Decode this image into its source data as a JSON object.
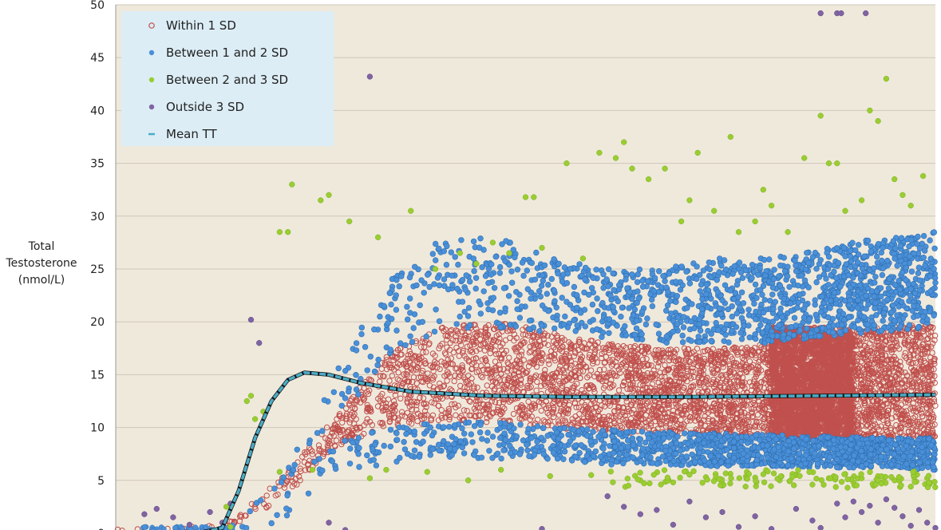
{
  "chart_data": {
    "type": "scatter",
    "title": "",
    "xlabel": "",
    "ylabel_lines": [
      "Total",
      "Testosterone",
      "(nmol/L)"
    ],
    "ylim": [
      0,
      50
    ],
    "yticks": [
      0,
      5,
      10,
      15,
      20,
      25,
      30,
      35,
      40,
      45,
      50
    ],
    "ytick_labels": [
      "0",
      "5",
      "10",
      "15",
      "20",
      "25",
      "30",
      "35",
      "40",
      "45",
      "50"
    ],
    "grid": true,
    "legend": {
      "placement": "top-left",
      "entries": [
        {
          "name": "Within 1 SD",
          "color": "#c0504d",
          "marker": "hollow-circle"
        },
        {
          "name": "Between 1 and 2 SD",
          "color": "#4a90d9",
          "marker": "filled-circle"
        },
        {
          "name": "Between 2 and 3 SD",
          "color": "#9acd32",
          "marker": "filled-circle"
        },
        {
          "name": "Outside 3 SD",
          "color": "#8064a2",
          "marker": "filled-circle"
        },
        {
          "name": "Mean TT",
          "color": "#4bacc6",
          "marker": "dash"
        }
      ]
    },
    "mean_curve_points": [
      [
        0.0,
        0.0
      ],
      [
        0.1,
        0.0
      ],
      [
        0.13,
        0.5
      ],
      [
        0.15,
        4.0
      ],
      [
        0.17,
        9.0
      ],
      [
        0.19,
        12.5
      ],
      [
        0.21,
        14.5
      ],
      [
        0.23,
        15.2
      ],
      [
        0.26,
        15.0
      ],
      [
        0.3,
        14.2
      ],
      [
        0.36,
        13.4
      ],
      [
        0.45,
        13.0
      ],
      [
        0.55,
        12.9
      ],
      [
        0.7,
        12.9
      ],
      [
        0.85,
        13.0
      ],
      [
        1.0,
        13.1
      ]
    ],
    "series": [
      {
        "name": "Within 1 SD",
        "color": "#c0504d",
        "band_min": [
          0,
          0,
          0.2,
          3,
          8,
          10,
          10.5,
          10.5,
          10,
          9.5,
          9.4,
          9.2,
          9.0,
          8.9,
          8.9,
          9.0
        ],
        "band_max": [
          0.5,
          0.5,
          0.8,
          5,
          11,
          17,
          19.5,
          20,
          19,
          18,
          17.5,
          17.5,
          18,
          18.5,
          19.5,
          19.8
        ],
        "density": [
          0,
          2,
          4,
          6,
          16,
          32,
          44,
          48,
          52,
          58,
          66,
          72,
          78,
          84,
          120,
          64
        ],
        "dense_block": {
          "x_from": 0.8,
          "x_to": 0.9,
          "y_from": 9.0,
          "y_to": 19.5
        }
      },
      {
        "name": "Between 1 and 2 SD",
        "color": "#4a90d9",
        "upper_min": [
          0,
          0,
          0,
          4,
          10,
          17,
          19,
          19.5,
          19,
          18.5,
          18,
          18,
          18,
          18.5,
          19,
          19.5
        ],
        "upper_max": [
          0,
          0,
          0,
          6,
          15,
          24,
          28,
          28,
          26,
          25,
          25,
          26,
          26,
          27,
          28,
          28.5
        ],
        "lower_min": [
          0,
          0,
          0,
          1,
          6,
          6.5,
          7,
          7,
          7,
          6.5,
          6.5,
          6.3,
          6.3,
          6.2,
          6.2,
          6.0
        ],
        "lower_max": [
          0,
          0,
          0,
          3,
          9,
          10,
          10.5,
          10.5,
          10,
          9.8,
          9.6,
          9.5,
          9.3,
          9.2,
          9.0,
          9.0
        ],
        "density_upper": [
          0,
          0,
          0,
          2,
          4,
          10,
          14,
          16,
          18,
          22,
          26,
          32,
          36,
          42,
          62,
          34
        ],
        "density_lower": [
          0,
          0,
          0,
          2,
          4,
          8,
          10,
          12,
          16,
          22,
          28,
          34,
          40,
          46,
          54,
          36
        ]
      },
      {
        "name": "Between 2 and 3 SD",
        "color": "#9acd32",
        "points": [
          [
            0.135,
            2.5
          ],
          [
            0.14,
            0.6
          ],
          [
            0.16,
            12.5
          ],
          [
            0.165,
            13.0
          ],
          [
            0.17,
            10.8
          ],
          [
            0.18,
            11.5
          ],
          [
            0.2,
            28.5
          ],
          [
            0.21,
            28.5
          ],
          [
            0.215,
            33.0
          ],
          [
            0.25,
            31.5
          ],
          [
            0.26,
            32.0
          ],
          [
            0.285,
            29.5
          ],
          [
            0.32,
            28.0
          ],
          [
            0.36,
            30.5
          ],
          [
            0.39,
            25.0
          ],
          [
            0.42,
            26.5
          ],
          [
            0.44,
            25.5
          ],
          [
            0.46,
            27.5
          ],
          [
            0.48,
            26.5
          ],
          [
            0.5,
            31.8
          ],
          [
            0.51,
            31.8
          ],
          [
            0.52,
            27.0
          ],
          [
            0.55,
            35.0
          ],
          [
            0.57,
            26.0
          ],
          [
            0.59,
            36.0
          ],
          [
            0.61,
            35.5
          ],
          [
            0.62,
            37.0
          ],
          [
            0.63,
            34.5
          ],
          [
            0.65,
            33.5
          ],
          [
            0.67,
            34.5
          ],
          [
            0.69,
            29.5
          ],
          [
            0.7,
            31.5
          ],
          [
            0.71,
            36.0
          ],
          [
            0.73,
            30.5
          ],
          [
            0.75,
            37.5
          ],
          [
            0.76,
            28.5
          ],
          [
            0.78,
            29.5
          ],
          [
            0.79,
            32.5
          ],
          [
            0.8,
            31.0
          ],
          [
            0.82,
            28.5
          ],
          [
            0.84,
            35.5
          ],
          [
            0.86,
            39.5
          ],
          [
            0.87,
            35.0
          ],
          [
            0.88,
            35.0
          ],
          [
            0.89,
            30.5
          ],
          [
            0.91,
            31.5
          ],
          [
            0.92,
            40.0
          ],
          [
            0.93,
            39.0
          ],
          [
            0.94,
            43.0
          ],
          [
            0.95,
            33.5
          ],
          [
            0.96,
            32.0
          ],
          [
            0.97,
            31.0
          ],
          [
            0.985,
            33.8
          ],
          [
            0.2,
            5.8
          ],
          [
            0.24,
            6.0
          ],
          [
            0.31,
            5.2
          ],
          [
            0.33,
            6.0
          ],
          [
            0.38,
            5.8
          ],
          [
            0.43,
            5.0
          ],
          [
            0.47,
            6.0
          ],
          [
            0.53,
            5.4
          ],
          [
            0.58,
            5.5
          ],
          [
            0.64,
            5.0
          ],
          [
            0.68,
            4.8
          ],
          [
            0.72,
            5.3
          ],
          [
            0.74,
            4.5
          ],
          [
            0.77,
            5.8
          ],
          [
            0.81,
            5.0
          ],
          [
            0.83,
            5.5
          ],
          [
            0.85,
            4.6
          ],
          [
            0.87,
            5.2
          ],
          [
            0.89,
            5.6
          ],
          [
            0.9,
            4.8
          ],
          [
            0.93,
            5.4
          ],
          [
            0.95,
            5.0
          ],
          [
            0.97,
            4.4
          ],
          [
            0.99,
            5.2
          ]
        ],
        "extra_scatter_count": 120
      },
      {
        "name": "Outside 3 SD",
        "color": "#8064a2",
        "points": [
          [
            0.035,
            1.8
          ],
          [
            0.05,
            2.3
          ],
          [
            0.07,
            1.5
          ],
          [
            0.09,
            0.8
          ],
          [
            0.115,
            2.0
          ],
          [
            0.13,
            1.0
          ],
          [
            0.14,
            2.8
          ],
          [
            0.165,
            20.2
          ],
          [
            0.175,
            18.0
          ],
          [
            0.31,
            43.2
          ],
          [
            0.26,
            1.0
          ],
          [
            0.28,
            0.3
          ],
          [
            0.52,
            0.4
          ],
          [
            0.6,
            3.5
          ],
          [
            0.62,
            2.5
          ],
          [
            0.64,
            1.8
          ],
          [
            0.66,
            2.2
          ],
          [
            0.68,
            0.8
          ],
          [
            0.7,
            3.0
          ],
          [
            0.72,
            1.5
          ],
          [
            0.74,
            2.0
          ],
          [
            0.76,
            0.6
          ],
          [
            0.78,
            1.6
          ],
          [
            0.8,
            0.4
          ],
          [
            0.83,
            2.3
          ],
          [
            0.85,
            1.2
          ],
          [
            0.86,
            0.5
          ],
          [
            0.88,
            2.8
          ],
          [
            0.89,
            1.5
          ],
          [
            0.9,
            3.0
          ],
          [
            0.91,
            2.0
          ],
          [
            0.92,
            2.6
          ],
          [
            0.93,
            1.0
          ],
          [
            0.94,
            3.2
          ],
          [
            0.95,
            2.4
          ],
          [
            0.96,
            1.6
          ],
          [
            0.97,
            0.7
          ],
          [
            0.98,
            2.2
          ],
          [
            0.99,
            1.0
          ],
          [
            1.0,
            0.5
          ],
          [
            0.86,
            49.2
          ],
          [
            0.88,
            49.2
          ],
          [
            0.885,
            49.2
          ],
          [
            0.915,
            49.2
          ]
        ]
      }
    ]
  }
}
